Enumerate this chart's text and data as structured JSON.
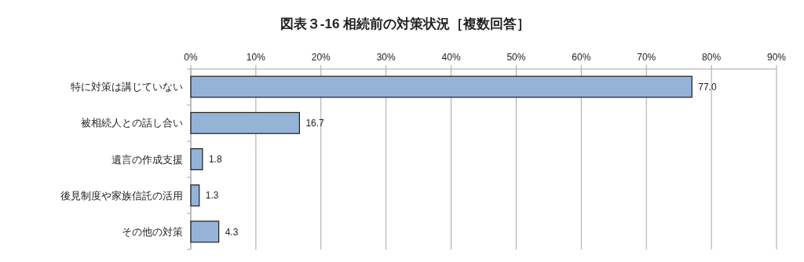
{
  "chart_data": {
    "type": "bar",
    "orientation": "horizontal",
    "title": "図表３-16 相続前の対策状況［複数回答］",
    "categories": [
      "特に対策は講じていない",
      "被相続人との話し合い",
      "遺言の作成支援",
      "後見制度や家族信託の活用",
      "その他の対策"
    ],
    "values": [
      77.0,
      16.7,
      1.8,
      1.3,
      4.3
    ],
    "value_labels": [
      "77.0",
      "16.7",
      "1.8",
      "1.3",
      "4.3"
    ],
    "color": "#95b3d7",
    "xlim": [
      0,
      90
    ],
    "xticks": [
      {
        "value": 0,
        "label": "0%"
      },
      {
        "value": 10,
        "label": "10%"
      },
      {
        "value": 20,
        "label": "20%"
      },
      {
        "value": 30,
        "label": "30%"
      },
      {
        "value": 40,
        "label": "40%"
      },
      {
        "value": 50,
        "label": "50%"
      },
      {
        "value": 60,
        "label": "60%"
      },
      {
        "value": 70,
        "label": "70%"
      },
      {
        "value": 80,
        "label": "80%"
      },
      {
        "value": 90,
        "label": "90%"
      }
    ],
    "grid": "x"
  }
}
